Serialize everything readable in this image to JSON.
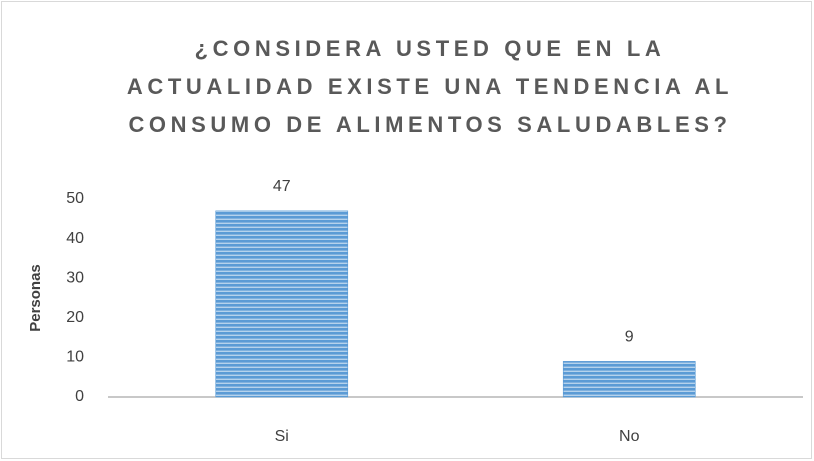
{
  "chart_data": {
    "type": "bar",
    "title": "¿CONSIDERA USTED QUE EN LA ACTUALIDAD EXISTE UNA TENDENCIA AL CONSUMO DE ALIMENTOS SALUDABLES?",
    "y_label": "Personas",
    "categories": [
      "Si",
      "No"
    ],
    "values": [
      47,
      9
    ],
    "color": "#5b9bd5",
    "ylim": [
      0,
      50
    ],
    "yticks": [
      0,
      10,
      20,
      30,
      40,
      50
    ],
    "grid": false,
    "data_labels": true
  }
}
